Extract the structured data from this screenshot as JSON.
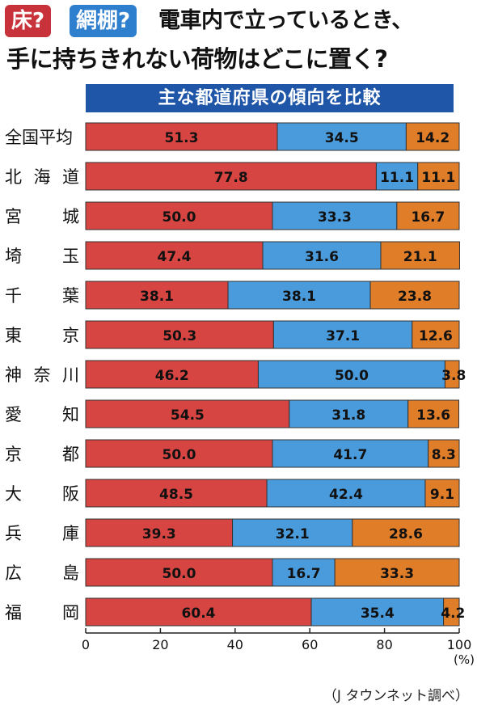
{
  "header": {
    "badge_floor": "床?",
    "badge_rack": "網棚?",
    "title_line1": "電車内で立っているとき、",
    "title_line2": "手に持ちきれない荷物はどこに置く?",
    "subtitle": "主な都道府県の傾向を比較"
  },
  "source": "（J タウンネット調べ）",
  "colors": {
    "floor": "#d64541",
    "rack": "#4a9bdc",
    "other": "#e07d28"
  },
  "chart_data": {
    "type": "bar",
    "stacked": true,
    "orientation": "horizontal",
    "categories": [
      "全国平均",
      "北 海 道",
      "宮 城",
      "埼 玉",
      "千 葉",
      "東 京",
      "神 奈 川",
      "愛 知",
      "京 都",
      "大 阪",
      "兵 庫",
      "広 島",
      "福 岡"
    ],
    "series": [
      {
        "values": [
          51.3,
          77.8,
          50.0,
          47.4,
          38.1,
          50.3,
          46.2,
          54.5,
          50.0,
          48.5,
          39.3,
          50.0,
          60.4
        ]
      },
      {
        "values": [
          34.5,
          11.1,
          33.3,
          31.6,
          38.1,
          37.1,
          50.0,
          31.8,
          41.7,
          42.4,
          32.1,
          16.7,
          35.4
        ]
      },
      {
        "values": [
          14.2,
          11.1,
          16.7,
          21.1,
          23.8,
          12.6,
          3.8,
          13.6,
          8.3,
          9.1,
          28.6,
          33.3,
          4.2
        ]
      }
    ],
    "xlim": [
      0,
      100
    ],
    "xticks": [
      0,
      20,
      40,
      60,
      80,
      100
    ],
    "xunit": "(%)"
  }
}
